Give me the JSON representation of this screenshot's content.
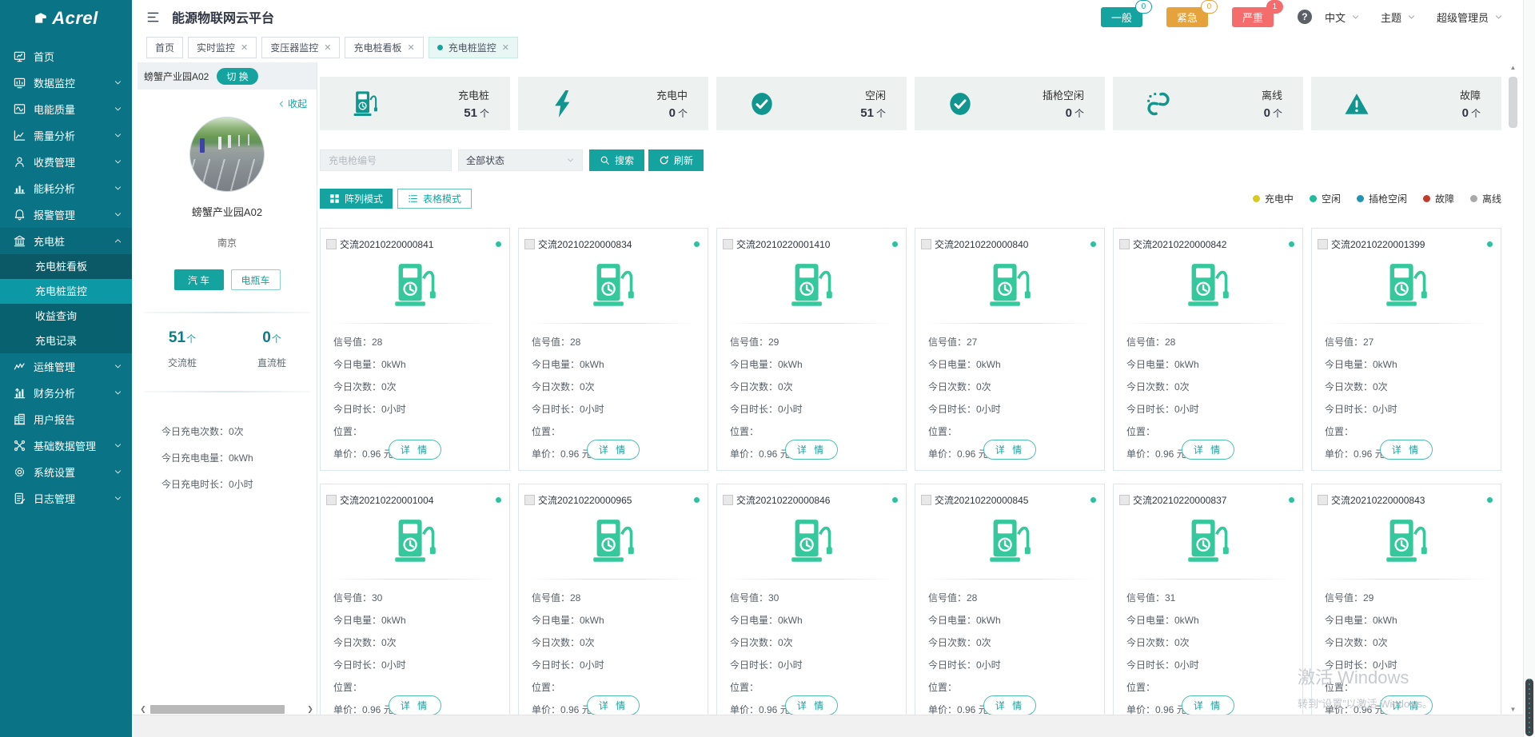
{
  "app": {
    "logo_text": "Acrel",
    "title": "能源物联网云平台"
  },
  "header": {
    "alarm_badges": [
      {
        "label": "一般",
        "count": "0",
        "color": "#14a39f",
        "count_filled": false
      },
      {
        "label": "紧急",
        "count": "0",
        "color": "#e6a23c",
        "count_filled": false
      },
      {
        "label": "严重",
        "count": "1",
        "color": "#f56c6c",
        "count_filled": true
      }
    ],
    "help": "?",
    "language": "中文",
    "theme": "主题",
    "user": "超级管理员"
  },
  "tabs": [
    {
      "label": "首页",
      "closable": false,
      "active": false
    },
    {
      "label": "实时监控",
      "closable": true,
      "active": false
    },
    {
      "label": "变压器监控",
      "closable": true,
      "active": false
    },
    {
      "label": "充电桩看板",
      "closable": true,
      "active": false
    },
    {
      "label": "充电桩监控",
      "closable": true,
      "active": true
    }
  ],
  "sidebar": [
    {
      "label": "首页",
      "icon": "home-icon",
      "arrow": ""
    },
    {
      "label": "数据监控",
      "icon": "data-monitor-icon",
      "arrow": "down"
    },
    {
      "label": "电能质量",
      "icon": "power-quality-icon",
      "arrow": "down"
    },
    {
      "label": "需量分析",
      "icon": "demand-analysis-icon",
      "arrow": "down"
    },
    {
      "label": "收费管理",
      "icon": "fee-management-icon",
      "arrow": "down"
    },
    {
      "label": "能耗分析",
      "icon": "energy-analysis-icon",
      "arrow": "down"
    },
    {
      "label": "报警管理",
      "icon": "alarm-management-icon",
      "arrow": "down"
    },
    {
      "label": "充电桩",
      "icon": "charging-station-icon",
      "arrow": "up",
      "expanded": true,
      "children": [
        {
          "label": "充电桩看板",
          "active": false
        },
        {
          "label": "充电桩监控",
          "active": true
        },
        {
          "label": "收益查询",
          "active": false
        },
        {
          "label": "充电记录",
          "active": false
        }
      ]
    },
    {
      "label": "运维管理",
      "icon": "ops-management-icon",
      "arrow": "down"
    },
    {
      "label": "财务分析",
      "icon": "finance-analysis-icon",
      "arrow": "down"
    },
    {
      "label": "用户报告",
      "icon": "user-report-icon",
      "arrow": ""
    },
    {
      "label": "基础数据管理",
      "icon": "base-data-icon",
      "arrow": "down"
    },
    {
      "label": "系统设置",
      "icon": "settings-icon",
      "arrow": "down"
    },
    {
      "label": "日志管理",
      "icon": "log-management-icon",
      "arrow": "down"
    }
  ],
  "site_panel": {
    "name": "螃蟹产业园A02",
    "switch_label": "切 换",
    "collapse_label": "收起",
    "site_name": "螃蟹产业园A02",
    "city": "南京",
    "vehicle_tabs": [
      {
        "label": "汽 车",
        "active": true
      },
      {
        "label": "电瓶车",
        "active": false
      }
    ],
    "counters": [
      {
        "value": "51",
        "unit": "个",
        "label": "交流桩"
      },
      {
        "value": "0",
        "unit": "个",
        "label": "直流桩"
      }
    ],
    "today_stats": [
      "今日充电次数：0次",
      "今日充电电量：0kWh",
      "今日充电时长：0小时"
    ]
  },
  "summary_cards": [
    {
      "label": "充电桩",
      "value": "51",
      "unit": "个",
      "icon": "charging-pile-icon"
    },
    {
      "label": "充电中",
      "value": "0",
      "unit": "个",
      "icon": "lightning-icon"
    },
    {
      "label": "空闲",
      "value": "51",
      "unit": "个",
      "icon": "check-circle-icon"
    },
    {
      "label": "插枪空闲",
      "value": "0",
      "unit": "个",
      "icon": "check-circle-icon"
    },
    {
      "label": "离线",
      "value": "0",
      "unit": "个",
      "icon": "offline-icon"
    },
    {
      "label": "故障",
      "value": "0",
      "unit": "个",
      "icon": "fault-icon"
    }
  ],
  "filter": {
    "gun_input_placeholder": "充电枪编号",
    "status_select_value": "全部状态",
    "search_label": "搜索",
    "refresh_label": "刷新"
  },
  "modes": [
    {
      "label": "阵列模式",
      "active": true,
      "icon": "grid-icon"
    },
    {
      "label": "表格模式",
      "active": false,
      "icon": "list-icon"
    }
  ],
  "legend": [
    {
      "label": "充电中",
      "color": "#d9c81f"
    },
    {
      "label": "空闲",
      "color": "#1fbc9c"
    },
    {
      "label": "插枪空闲",
      "color": "#2293b5"
    },
    {
      "label": "故障",
      "color": "#c23a2b"
    },
    {
      "label": "离线",
      "color": "#a9a9a9"
    }
  ],
  "pile_field_labels": [
    "信号值：",
    "今日电量：",
    "今日次数：",
    "今日时长：",
    "位置：",
    "单价："
  ],
  "pile_detail_label": "详 情",
  "pile_status_color": "#2fbf9f",
  "piles": [
    {
      "name": "交流20210220000841",
      "values": [
        "28",
        "0kWh",
        "0次",
        "0小时",
        "",
        "0.96 元/度"
      ]
    },
    {
      "name": "交流20210220000834",
      "values": [
        "28",
        "0kWh",
        "0次",
        "0小时",
        "",
        "0.96 元/度"
      ]
    },
    {
      "name": "交流20210220001410",
      "values": [
        "29",
        "0kWh",
        "0次",
        "0小时",
        "",
        "0.96 元/度"
      ]
    },
    {
      "name": "交流20210220000840",
      "values": [
        "27",
        "0kWh",
        "0次",
        "0小时",
        "",
        "0.96 元/度"
      ]
    },
    {
      "name": "交流20210220000842",
      "values": [
        "28",
        "0kWh",
        "0次",
        "0小时",
        "",
        "0.96 元/度"
      ]
    },
    {
      "name": "交流20210220001399",
      "values": [
        "27",
        "0kWh",
        "0次",
        "0小时",
        "",
        "0.96 元/度"
      ]
    },
    {
      "name": "交流20210220001004",
      "values": [
        "30",
        "0kWh",
        "0次",
        "0小时",
        "",
        "0.96 元/度"
      ]
    },
    {
      "name": "交流20210220000965",
      "values": [
        "28",
        "0kWh",
        "0次",
        "0小时",
        "",
        "0.96 元/度"
      ]
    },
    {
      "name": "交流20210220000846",
      "values": [
        "30",
        "0kWh",
        "0次",
        "0小时",
        "",
        "0.96 元/度"
      ]
    },
    {
      "name": "交流20210220000845",
      "values": [
        "28",
        "0kWh",
        "0次",
        "0小时",
        "",
        "0.96 元/度"
      ]
    },
    {
      "name": "交流20210220000837",
      "values": [
        "31",
        "0kWh",
        "0次",
        "0小时",
        "",
        "0.96 元/度"
      ]
    },
    {
      "name": "交流20210220000843",
      "values": [
        "29",
        "0kWh",
        "0次",
        "0小时",
        "",
        "0.96 元/度"
      ]
    }
  ],
  "watermark": {
    "line1": "激活 Windows",
    "line2": "转到“设置”以激活 Windows。"
  }
}
